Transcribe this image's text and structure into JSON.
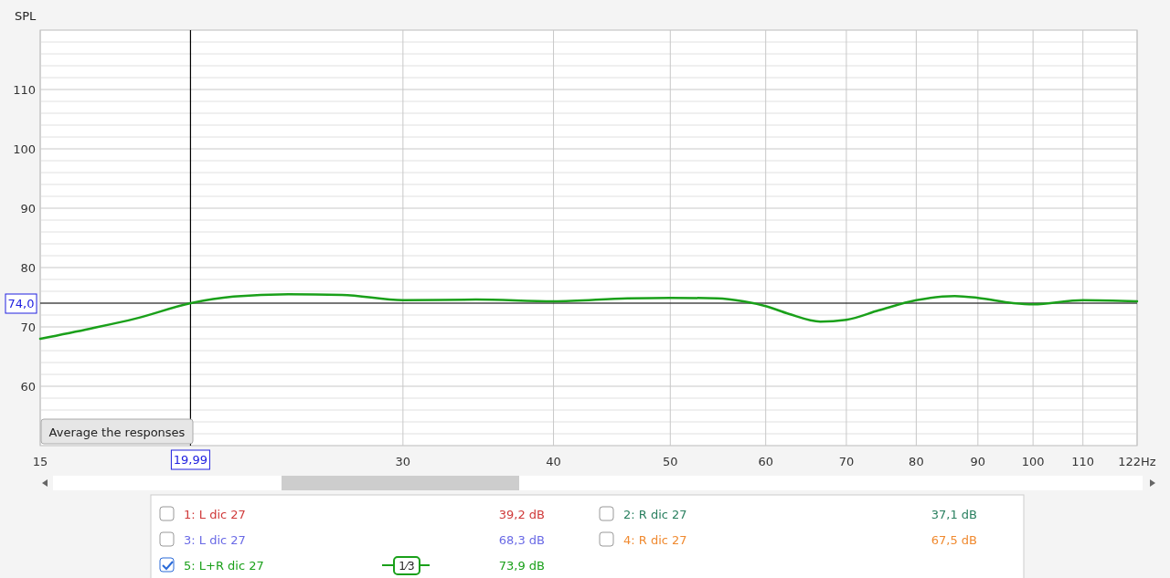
{
  "chart_data": {
    "type": "line",
    "ylabel": "SPL",
    "log": "x",
    "xlim": [
      15,
      122
    ],
    "ylim": [
      50,
      120
    ],
    "xticks": [
      15,
      30,
      40,
      50,
      60,
      70,
      80,
      90,
      100,
      110,
      {
        "value": 122,
        "label": "122Hz"
      }
    ],
    "yticks": [
      {
        "value": 52,
        "label": null
      },
      {
        "value": 54,
        "label": null
      },
      {
        "value": 56,
        "label": null
      },
      {
        "value": 58,
        "label": null
      },
      60,
      {
        "value": 62,
        "label": null
      },
      {
        "value": 64,
        "label": null
      },
      {
        "value": 66,
        "label": null
      },
      {
        "value": 68,
        "label": null
      },
      70,
      {
        "value": 72,
        "label": null
      },
      {
        "value": 74,
        "label": null
      },
      {
        "value": 76,
        "label": null
      },
      {
        "value": 78,
        "label": null
      },
      80,
      {
        "value": 82,
        "label": null
      },
      {
        "value": 84,
        "label": null
      },
      {
        "value": 86,
        "label": null
      },
      {
        "value": 88,
        "label": null
      },
      90,
      {
        "value": 92,
        "label": null
      },
      {
        "value": 94,
        "label": null
      },
      {
        "value": 96,
        "label": null
      },
      {
        "value": 98,
        "label": null
      },
      100,
      {
        "value": 102,
        "label": null
      },
      {
        "value": 104,
        "label": null
      },
      {
        "value": 106,
        "label": null
      },
      {
        "value": 108,
        "label": null
      },
      110,
      {
        "value": 112,
        "label": null
      },
      {
        "value": 114,
        "label": null
      },
      {
        "value": 116,
        "label": null
      },
      {
        "value": 118,
        "label": null
      }
    ],
    "grid": true,
    "legend": "bottom",
    "marker": "none",
    "line_style": "solid",
    "series": [
      {
        "name": "5: L+R dic 27",
        "color": "#1aa01a",
        "x": [
          15,
          16.5,
          18,
          20,
          21.7,
          24.1,
          26.7,
          30,
          34.5,
          40,
          46.1,
          50,
          54.7,
          57.5,
          60,
          62.7,
          66.6,
          70,
          74.5,
          80,
          86.1,
          90,
          96.3,
          100,
          110,
          122
        ],
        "values": [
          68.0,
          69.7,
          71.4,
          74.0,
          75.1,
          75.5,
          75.4,
          74.5,
          74.6,
          74.3,
          74.8,
          74.9,
          74.8,
          74.3,
          73.5,
          72.2,
          70.9,
          71.2,
          72.8,
          74.5,
          75.2,
          74.9,
          74.0,
          73.8,
          74.5,
          74.3
        ]
      }
    ],
    "ref_lines": [
      {
        "axis": "x",
        "value": 19.99,
        "label": "19,99",
        "color": "#000000"
      },
      {
        "axis": "y",
        "value": 74.0,
        "label": "74,0",
        "color": "#000000"
      }
    ],
    "annotations": [
      "Average the responses",
      "1: L dic 27",
      "39,2 dB",
      "2: R dic 27",
      "37,1 dB",
      "3: L dic 27",
      "68,3 dB",
      "4: R dic 27",
      "67,5 dB",
      "73,9 dB",
      "1⁄3"
    ]
  }
}
